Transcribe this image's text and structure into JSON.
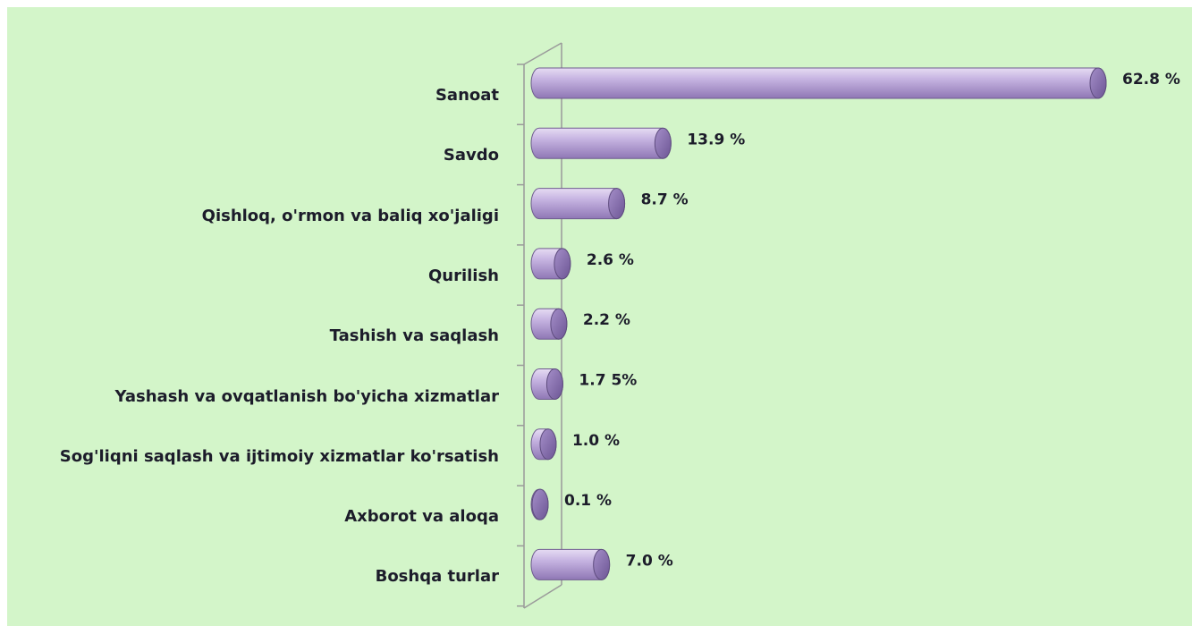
{
  "chart_data": {
    "type": "bar",
    "orientation": "horizontal",
    "categories": [
      "Sanoat",
      "Savdo",
      "Qishloq, o'rmon va baliq xo'jaligi",
      "Qurilish",
      "Tashish va saqlash",
      "Yashash va ovqatlanish bo'yicha xizmatlar",
      "Sog'liqni saqlash va ijtimoiy xizmatlar ko'rsatish",
      "Axborot va aloqa",
      "Boshqa turlar"
    ],
    "values": [
      62.8,
      13.9,
      8.7,
      2.6,
      2.2,
      1.75,
      1.0,
      0.1,
      7.0
    ],
    "value_labels": [
      "62.8 %",
      "13.9 %",
      "8.7 %",
      "2.6 %",
      "2.2 %",
      "1.7 5%",
      "1.0 %",
      "0.1 %",
      "7.0 %"
    ],
    "color": "#b9a3d9"
  }
}
